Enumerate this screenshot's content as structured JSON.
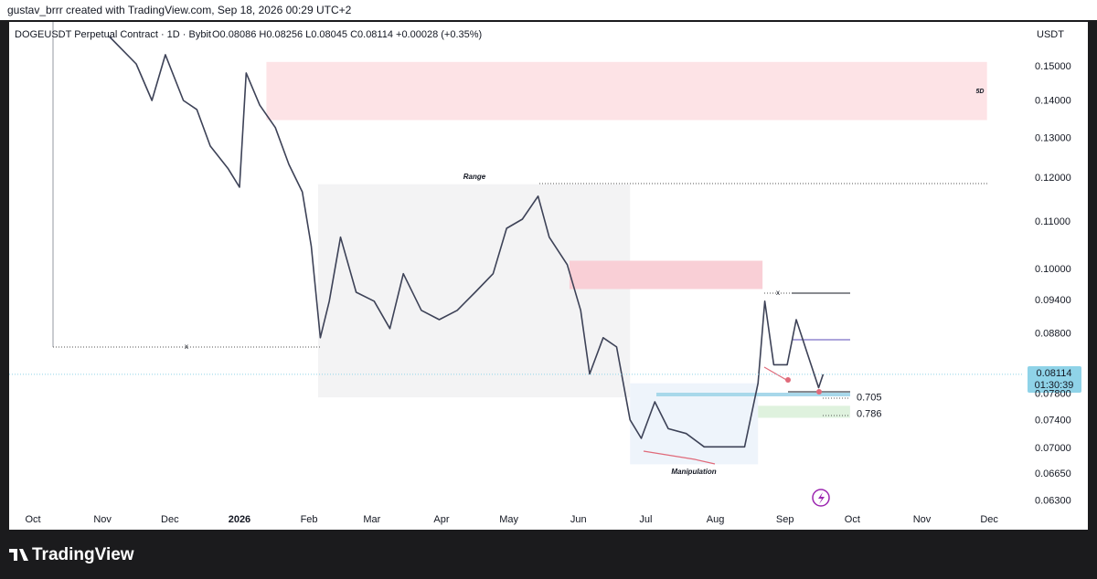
{
  "header": "gustav_brrr created with TradingView.com, Sep 18, 2026 00:29 UTC+2",
  "footer_logo": "TradingView",
  "chart_data": {
    "type": "line",
    "title": "DOGEUSDT Perpetual Contract · 1D · Bybit",
    "legend_values": "O0.08086 H0.08256 L0.08045 C0.08114 +0.00028 (+0.35%)",
    "currency": "USDT",
    "color": "#3d4257",
    "log_scale": true,
    "grid": false,
    "x": [
      34,
      46,
      53,
      59,
      67,
      73,
      79,
      87,
      92,
      95,
      101,
      108,
      114,
      120,
      124,
      128,
      132,
      137,
      144,
      152,
      159,
      165,
      173,
      181,
      189,
      197,
      205,
      211,
      218,
      225,
      230,
      238,
      244,
      248,
      254,
      260,
      266,
      271,
      277,
      283,
      291,
      299,
      307,
      317,
      323,
      326,
      330,
      336,
      340,
      344,
      350,
      352
    ],
    "values": [
      0.1593,
      0.1508,
      0.1402,
      0.1536,
      0.1402,
      0.1377,
      0.128,
      0.1223,
      0.1179,
      0.1481,
      0.1389,
      0.1328,
      0.1234,
      0.1168,
      0.1048,
      0.0873,
      0.0939,
      0.1067,
      0.0956,
      0.0939,
      0.0889,
      0.0992,
      0.0922,
      0.0905,
      0.0922,
      0.0956,
      0.0992,
      0.1086,
      0.1106,
      0.1158,
      0.1067,
      0.101,
      0.0922,
      0.0812,
      0.0873,
      0.0857,
      0.0741,
      0.0714,
      0.0768,
      0.0728,
      0.0721,
      0.0702,
      0.0702,
      0.0702,
      0.0797,
      0.0939,
      0.0827,
      0.0827,
      0.0905,
      0.0857,
      0.079,
      0.08114
    ],
    "xlim": [
      -10.6,
      440.6
    ],
    "xticks": [
      {
        "value": 0,
        "label": "Oct"
      },
      {
        "value": 31,
        "label": "Nov"
      },
      {
        "value": 61,
        "label": "Dec"
      },
      {
        "value": 92,
        "label": "2026"
      },
      {
        "value": 123,
        "label": "Feb"
      },
      {
        "value": 151,
        "label": "Mar"
      },
      {
        "value": 182,
        "label": "Apr"
      },
      {
        "value": 212,
        "label": "May"
      },
      {
        "value": 243,
        "label": "Jun"
      },
      {
        "value": 273,
        "label": "Jul"
      },
      {
        "value": 304,
        "label": "Aug"
      },
      {
        "value": 335,
        "label": "Sep"
      },
      {
        "value": 365,
        "label": "Oct"
      },
      {
        "value": 396,
        "label": "Nov"
      },
      {
        "value": 426,
        "label": "Dec"
      }
    ],
    "ylim": [
      0.0595,
      0.164
    ],
    "yticks": [
      {
        "value": 0.15,
        "label": "0.15000"
      },
      {
        "value": 0.14,
        "label": "0.14000"
      },
      {
        "value": 0.13,
        "label": "0.13000"
      },
      {
        "value": 0.12,
        "label": "0.12000"
      },
      {
        "value": 0.11,
        "label": "0.11000"
      },
      {
        "value": 0.1,
        "label": "0.10000"
      },
      {
        "value": 0.094,
        "label": "0.09400"
      },
      {
        "value": 0.088,
        "label": "0.08800"
      },
      {
        "value": 0.078,
        "label": "0.07800"
      },
      {
        "value": 0.074,
        "label": "0.07400"
      },
      {
        "value": 0.07,
        "label": "0.07000"
      },
      {
        "value": 0.0665,
        "label": "0.06650"
      },
      {
        "value": 0.063,
        "label": "0.06300"
      }
    ],
    "last_price": 0.08114,
    "countdown": "01:30:39",
    "zones": [
      {
        "x": [
          104,
          425
        ],
        "y": [
          0.1348,
          0.1514
        ],
        "color": "#fde3e6",
        "label": "5D"
      },
      {
        "x": [
          127,
          266
        ],
        "y": [
          0.0775,
          0.1186
        ],
        "color": "#f3f3f4",
        "label": "Range"
      },
      {
        "x": [
          239,
          325
        ],
        "y": [
          0.0962,
          0.1018
        ],
        "color": "#f9cfd6"
      },
      {
        "x": [
          266,
          323
        ],
        "y": [
          0.0678,
          0.0797
        ],
        "color": "#eef4fb",
        "label": "Manipulation"
      },
      {
        "x": [
          323,
          364
        ],
        "y": [
          0.0744,
          0.0762
        ],
        "color": "#dff2de"
      }
    ],
    "fib_levels": [
      {
        "level": 0.705,
        "price": 0.0774
      },
      {
        "level": 0.786,
        "price": 0.0749
      }
    ],
    "markers": [
      "x",
      "x"
    ]
  }
}
